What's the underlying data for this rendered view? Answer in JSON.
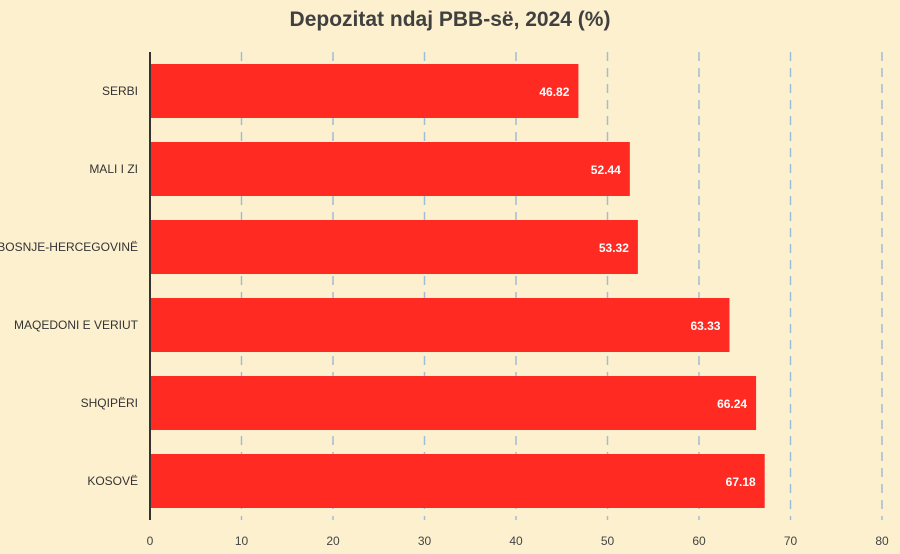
{
  "chart_data": {
    "type": "bar",
    "orientation": "horizontal",
    "title": "Depozitat ndaj PBB-së, 2024 (%)",
    "categories": [
      "SERBI",
      "MALI I ZI",
      "BOSNJE-HERCEGOVINË",
      "MAQEDONI E VERIUT",
      "SHQIPËRI",
      "KOSOVË"
    ],
    "values": [
      46.82,
      52.44,
      53.32,
      63.33,
      66.24,
      67.18
    ],
    "data_labels": [
      "46.82",
      "52.44",
      "53.32",
      "63.33",
      "66.24",
      "67.18"
    ],
    "xlim": [
      0,
      80
    ],
    "x_ticks": [
      0,
      10,
      20,
      30,
      40,
      50,
      60,
      70,
      80
    ],
    "grid": "vertical dashed",
    "bar_color": "#ff2a22",
    "grid_color": "#9fbcd6",
    "axis_color": "#333333",
    "background_color": "#fdf0cf"
  }
}
